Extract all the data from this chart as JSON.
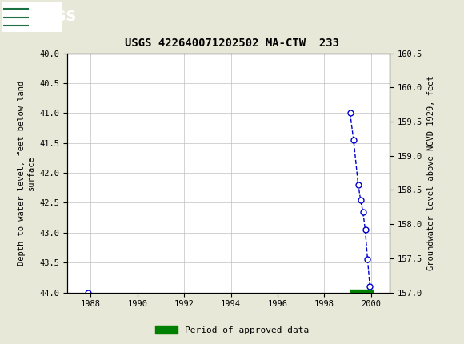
{
  "title": "USGS 422640071202502 MA-CTW  233",
  "ylabel_left": "Depth to water level, feet below land\nsurface",
  "ylabel_right": "Groundwater level above NGVD 1929, feet",
  "background_color": "#e8e8d8",
  "plot_bg": "#ffffff",
  "header_color": "#1a7040",
  "xlim": [
    1987.0,
    2000.8
  ],
  "ylim_left_top": 40.0,
  "ylim_left_bottom": 44.0,
  "ylim_right_top": 160.5,
  "ylim_right_bottom": 157.0,
  "xticks": [
    1988,
    1990,
    1992,
    1994,
    1996,
    1998,
    2000
  ],
  "yticks_left": [
    40.0,
    40.5,
    41.0,
    41.5,
    42.0,
    42.5,
    43.0,
    43.5,
    44.0
  ],
  "yticks_right": [
    160.5,
    160.0,
    159.5,
    159.0,
    158.5,
    158.0,
    157.5,
    157.0
  ],
  "isolated_x": [
    1987.9
  ],
  "isolated_y": [
    44.0
  ],
  "cluster_x": [
    1999.1,
    1999.25,
    1999.45,
    1999.55,
    1999.65,
    1999.75,
    1999.85,
    1999.95
  ],
  "cluster_y": [
    41.0,
    41.45,
    42.2,
    42.45,
    42.65,
    42.95,
    43.45,
    43.9
  ],
  "approved_bar_start": 1999.1,
  "approved_bar_end": 2000.1,
  "approved_bar_y": 44.0,
  "line_color": "#0000cc",
  "marker_facecolor": "#ffffff",
  "marker_edgecolor": "#0000cc",
  "legend_label": "Period of approved data",
  "legend_color": "#008000"
}
